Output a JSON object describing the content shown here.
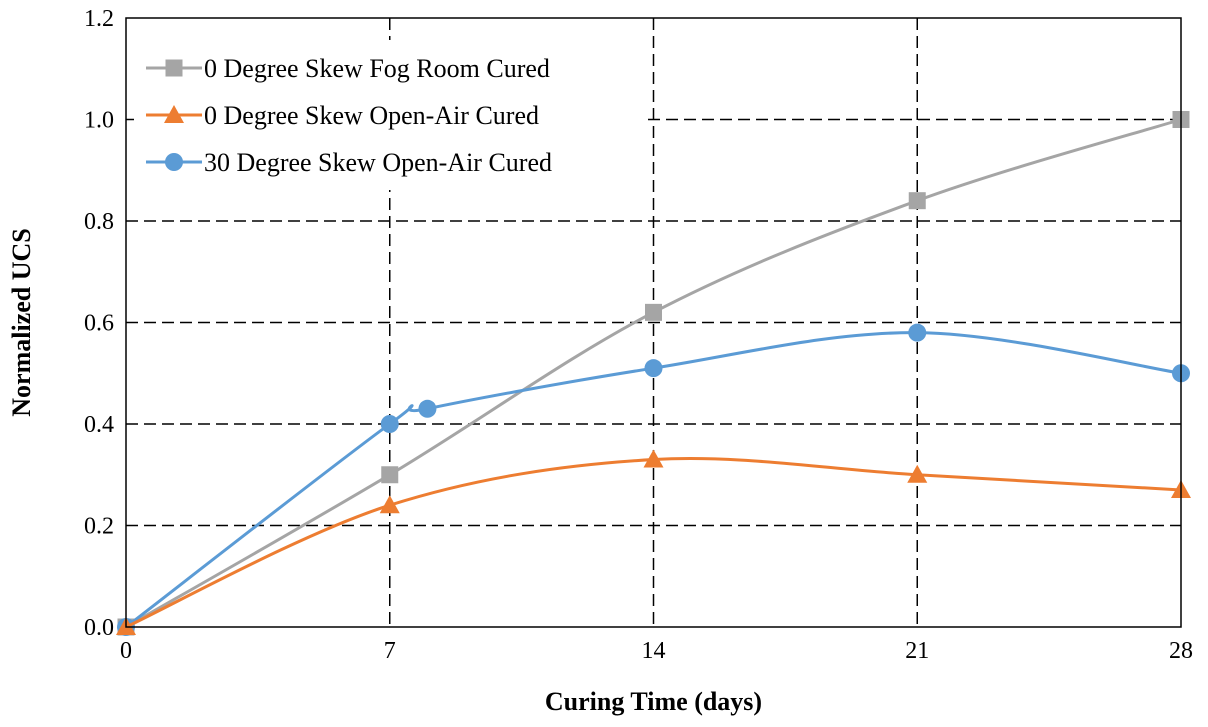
{
  "chart_data": {
    "type": "line",
    "title": "",
    "xlabel": "Curing Time (days)",
    "ylabel": "Normalized UCS",
    "xlim": [
      0,
      28
    ],
    "ylim": [
      0,
      1.2
    ],
    "xticks": [
      0,
      7,
      14,
      21,
      28
    ],
    "xtick_labels": [
      "0",
      "7",
      "14",
      "21",
      "28"
    ],
    "yticks": [
      0,
      0.2,
      0.4,
      0.6,
      0.8,
      1.0,
      1.2
    ],
    "ytick_labels": [
      "0.0",
      "0.2",
      "0.4",
      "0.6",
      "0.8",
      "1.0",
      "1.2"
    ],
    "grid": true,
    "legend_position": "top-left",
    "smooth": true,
    "series": [
      {
        "name": "0 Degree Skew Fog Room Cured",
        "color": "#A5A5A5",
        "marker": "square",
        "x": [
          0,
          7,
          14,
          21,
          28
        ],
        "y": [
          0,
          0.3,
          0.62,
          0.84,
          1.0
        ]
      },
      {
        "name": "0 Degree Skew Open-Air Cured",
        "color": "#ED7D31",
        "marker": "triangle",
        "x": [
          0,
          7,
          14,
          21,
          28
        ],
        "y": [
          0,
          0.24,
          0.33,
          0.3,
          0.27
        ]
      },
      {
        "name": "30 Degree Skew Open-Air Cured",
        "color": "#5B9BD5",
        "marker": "circle",
        "x": [
          0,
          7,
          8,
          14,
          21,
          28
        ],
        "y": [
          0,
          0.4,
          0.43,
          0.51,
          0.58,
          0.5
        ]
      }
    ]
  }
}
